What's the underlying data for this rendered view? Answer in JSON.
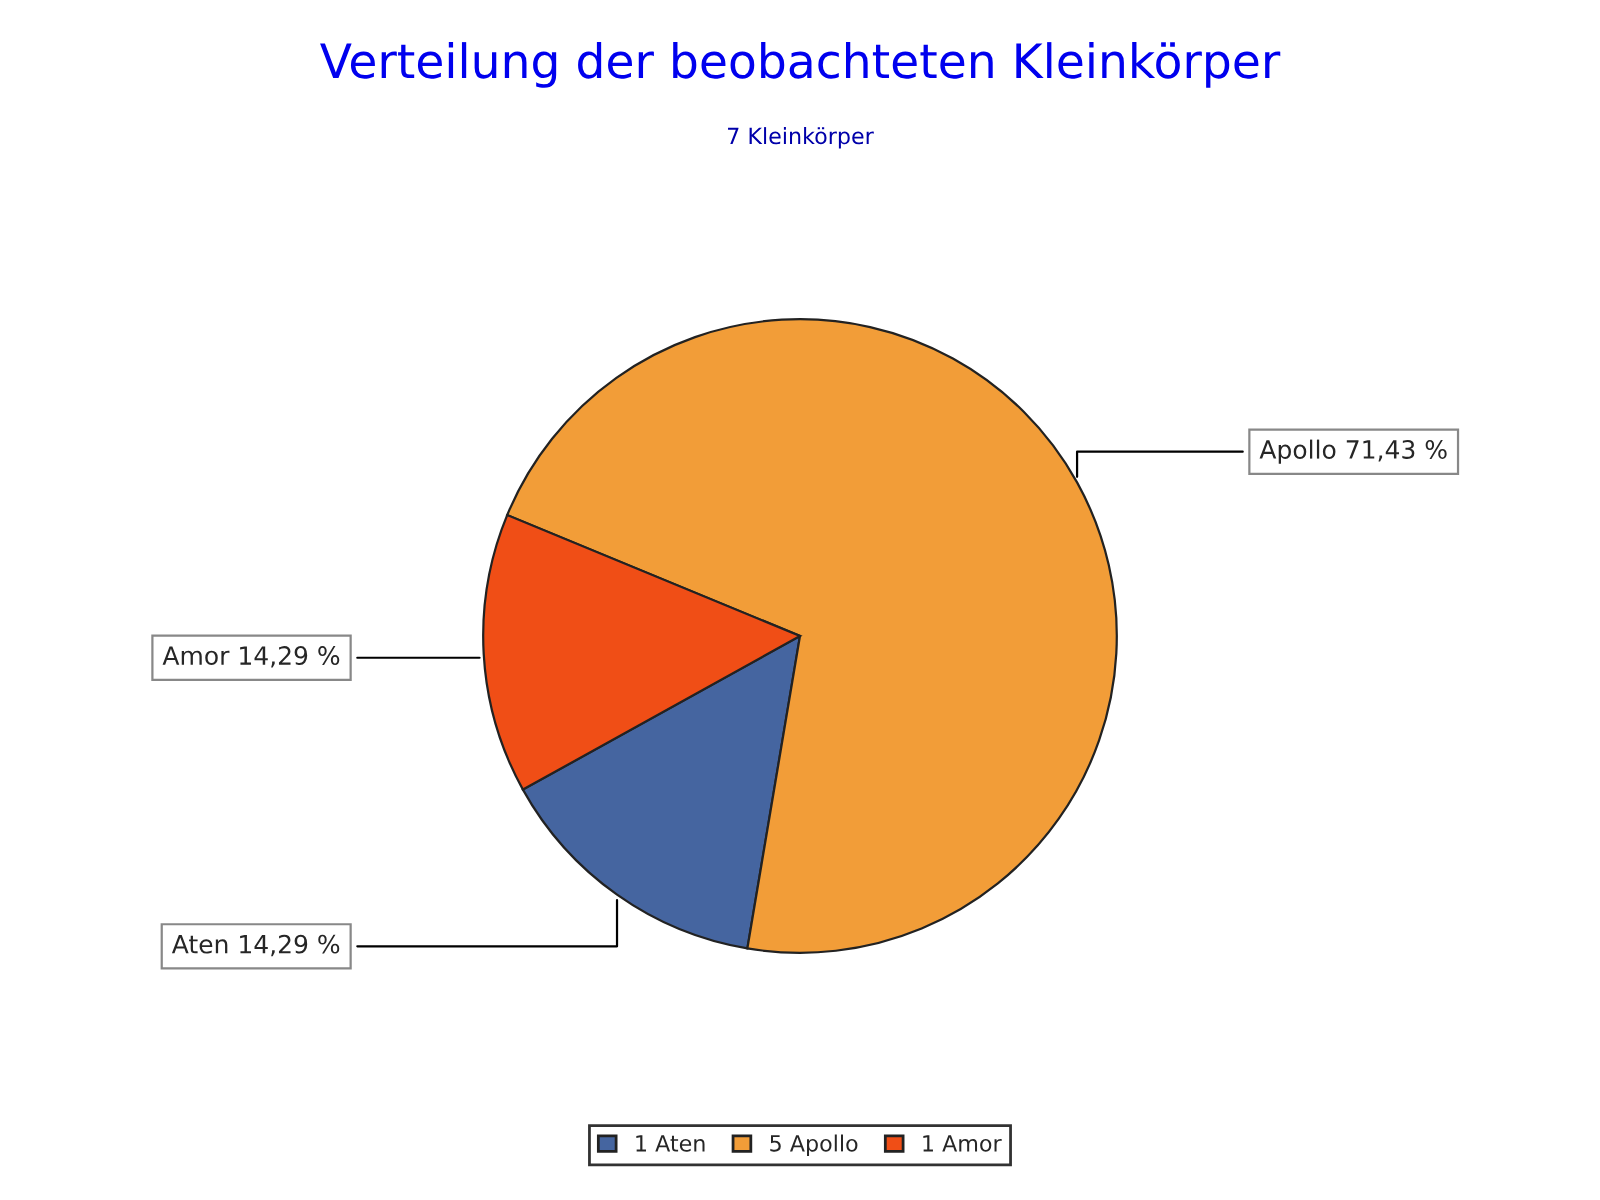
{
  "chart_data": {
    "type": "pie",
    "title": "Verteilung der beobachteten Kleinkörper",
    "subtitle": "7 Kleinkörper",
    "categories": [
      "1 Aten",
      "5 Apollo",
      "1 Amor"
    ],
    "values": [
      14.29,
      71.43,
      14.29
    ],
    "colors": [
      "#4565a0",
      "#f29d38",
      "#f04e16"
    ],
    "value_labels": [
      "Aten 14,29 %",
      "Apollo 71,43 %",
      "Amor 14,29 %"
    ],
    "legend": "bottom"
  }
}
